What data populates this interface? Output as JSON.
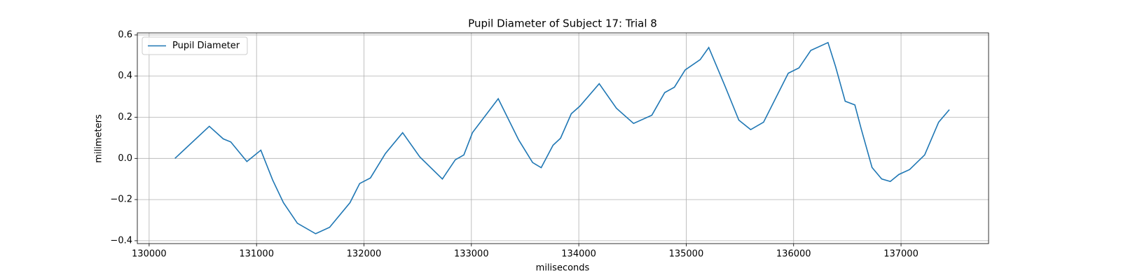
{
  "chart_data": {
    "type": "line",
    "title": "Pupil Diameter of Subject 17: Trial 8",
    "xlabel": "miliseconds",
    "ylabel": "milimeters",
    "x": [
      130240,
      130560,
      130690,
      130760,
      130910,
      131040,
      131150,
      131250,
      131380,
      131550,
      131680,
      131870,
      131960,
      132060,
      132200,
      132360,
      132520,
      132730,
      132850,
      132930,
      133010,
      133250,
      133440,
      133570,
      133650,
      133760,
      133830,
      133930,
      134010,
      134190,
      134350,
      134510,
      134680,
      134800,
      134890,
      134990,
      135130,
      135210,
      135360,
      135490,
      135600,
      135720,
      135950,
      136050,
      136160,
      136320,
      136390,
      136480,
      136570,
      136630,
      136730,
      136820,
      136900,
      136980,
      137080,
      137220,
      137350,
      137450
    ],
    "series": [
      {
        "name": "Pupil Diameter",
        "color": "#1f77b4",
        "values": [
          0.0,
          0.156,
          0.095,
          0.08,
          -0.015,
          0.04,
          -0.105,
          -0.215,
          -0.315,
          -0.366,
          -0.335,
          -0.215,
          -0.122,
          -0.095,
          0.024,
          0.125,
          0.007,
          -0.1,
          -0.007,
          0.017,
          0.125,
          0.29,
          0.09,
          -0.02,
          -0.045,
          0.064,
          0.098,
          0.217,
          0.254,
          0.363,
          0.244,
          0.17,
          0.21,
          0.32,
          0.346,
          0.43,
          0.48,
          0.539,
          0.353,
          0.186,
          0.14,
          0.176,
          0.414,
          0.44,
          0.525,
          0.563,
          0.447,
          0.278,
          0.26,
          0.142,
          -0.044,
          -0.1,
          -0.112,
          -0.078,
          -0.054,
          0.017,
          0.176,
          0.237
        ]
      }
    ],
    "xlim": [
      129890,
      137815
    ],
    "ylim": [
      -0.414,
      0.61
    ],
    "xticks": [
      130000,
      131000,
      132000,
      133000,
      134000,
      135000,
      136000,
      137000
    ],
    "yticks": [
      {
        "value": -0.4,
        "label": "−0.4"
      },
      {
        "value": -0.2,
        "label": "−0.2"
      },
      {
        "value": 0,
        "label": "0.0"
      },
      0.2,
      0.4,
      0.6
    ],
    "grid": true,
    "legend": "upper left"
  }
}
